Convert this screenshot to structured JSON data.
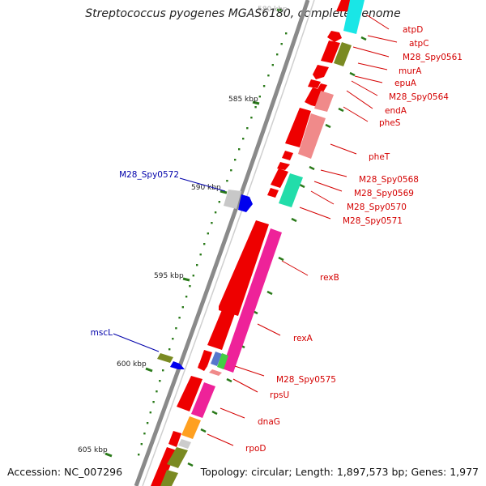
{
  "title": "Streptococcus pyogenes MGAS6180, complete genome",
  "footer": {
    "accession": "Accession: NC_007296",
    "summary": "Topology: circular; Length: 1,897,573 bp; Genes: 1,977"
  },
  "ticks": [
    {
      "label": "580 kbp",
      "pos": 580
    },
    {
      "label": "585 kbp",
      "pos": 585
    },
    {
      "label": "590 kbp",
      "pos": 590
    },
    {
      "label": "595 kbp",
      "pos": 595
    },
    {
      "label": "600 kbp",
      "pos": 600
    },
    {
      "label": "605 kbp",
      "pos": 605
    }
  ],
  "colors": {
    "red_label": "#d40000",
    "blue_label": "#0000aa",
    "backbone": "#888888",
    "tick": "#2a7a1a"
  },
  "genes": [
    {
      "name": "atpD",
      "color": "#d40000"
    },
    {
      "name": "atpC",
      "color": "#d40000"
    },
    {
      "name": "M28_Spy0561",
      "color": "#d40000"
    },
    {
      "name": "murA",
      "color": "#d40000"
    },
    {
      "name": "epuA",
      "color": "#d40000"
    },
    {
      "name": "M28_Spy0564",
      "color": "#d40000"
    },
    {
      "name": "endA",
      "color": "#d40000"
    },
    {
      "name": "pheS",
      "color": "#d40000"
    },
    {
      "name": "pheT",
      "color": "#d40000"
    },
    {
      "name": "M28_Spy0568",
      "color": "#d40000"
    },
    {
      "name": "M28_Spy0569",
      "color": "#d40000"
    },
    {
      "name": "M28_Spy0570",
      "color": "#d40000"
    },
    {
      "name": "M28_Spy0571",
      "color": "#d40000"
    },
    {
      "name": "rexB",
      "color": "#d40000"
    },
    {
      "name": "rexA",
      "color": "#d40000"
    },
    {
      "name": "M28_Spy0575",
      "color": "#d40000"
    },
    {
      "name": "rpsU",
      "color": "#d40000"
    },
    {
      "name": "dnaG",
      "color": "#d40000"
    },
    {
      "name": "rpoD",
      "color": "#d40000"
    },
    {
      "name": "M28_Spy0572",
      "color": "#0000aa"
    },
    {
      "name": "mscL",
      "color": "#0000aa"
    }
  ]
}
